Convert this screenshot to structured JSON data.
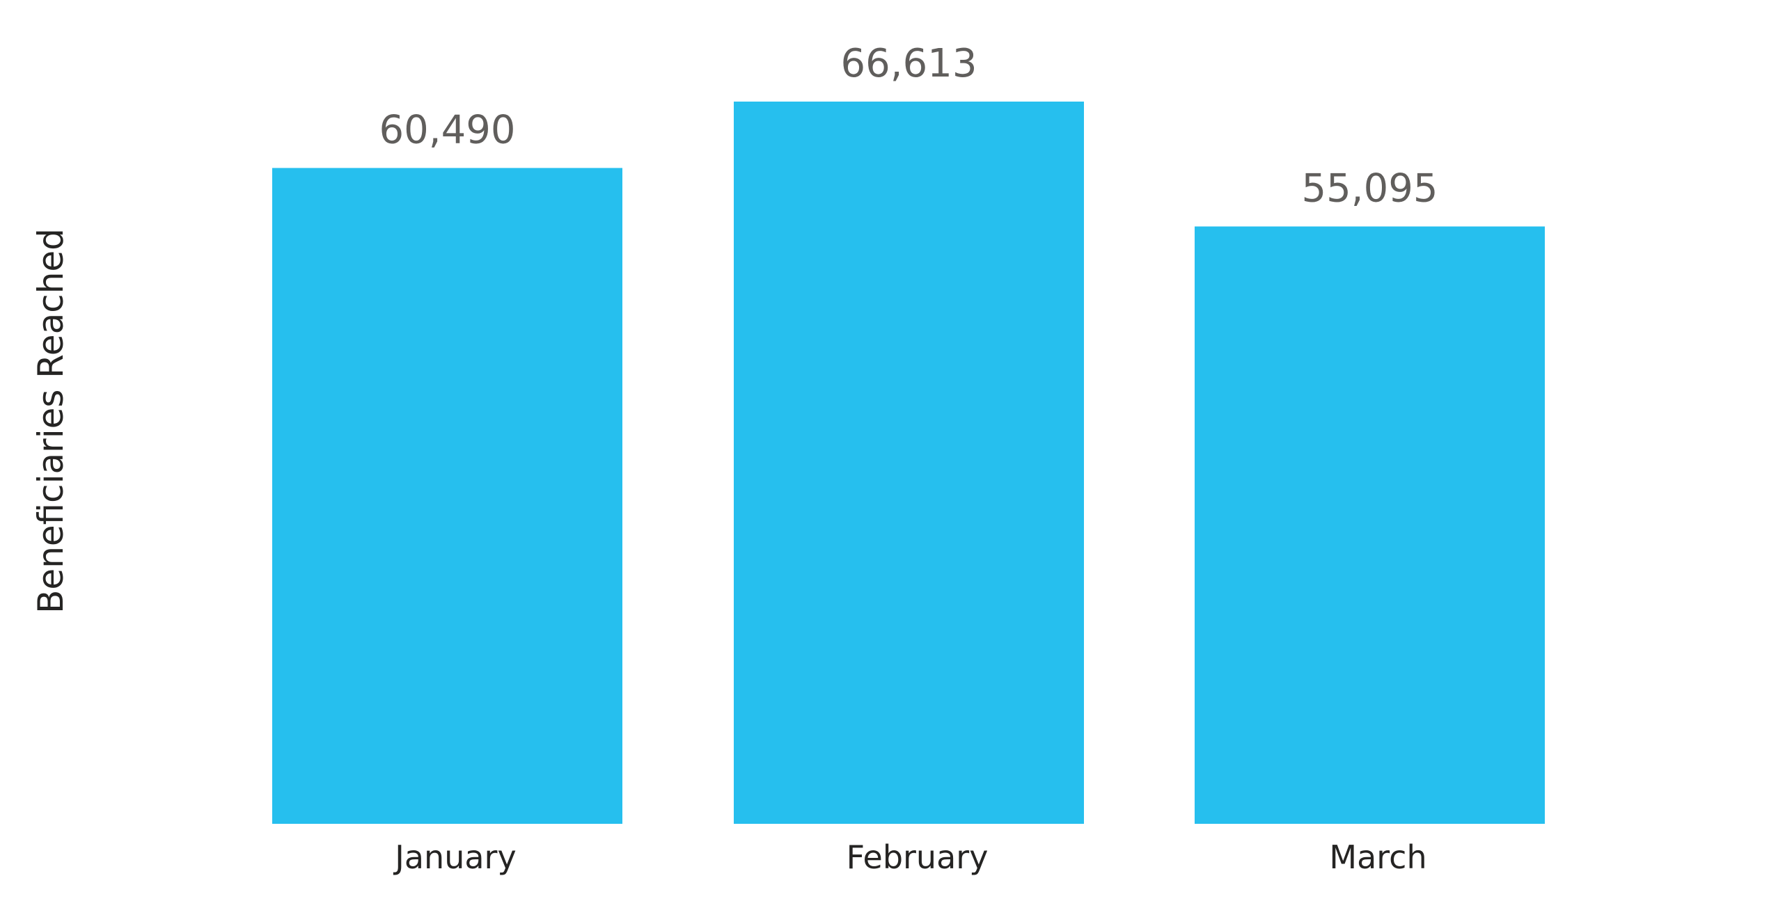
{
  "chart_data": {
    "type": "bar",
    "title": "",
    "xlabel": "",
    "ylabel": "Beneficiaries Reached",
    "categories": [
      "January",
      "February",
      "March"
    ],
    "values": [
      60490,
      66613,
      55095
    ],
    "value_labels": [
      "60,490",
      "66,613",
      "55,095"
    ],
    "ylim": [
      0,
      66613
    ],
    "grid": false,
    "legend": "none",
    "bar_color": "#26BFEE"
  }
}
